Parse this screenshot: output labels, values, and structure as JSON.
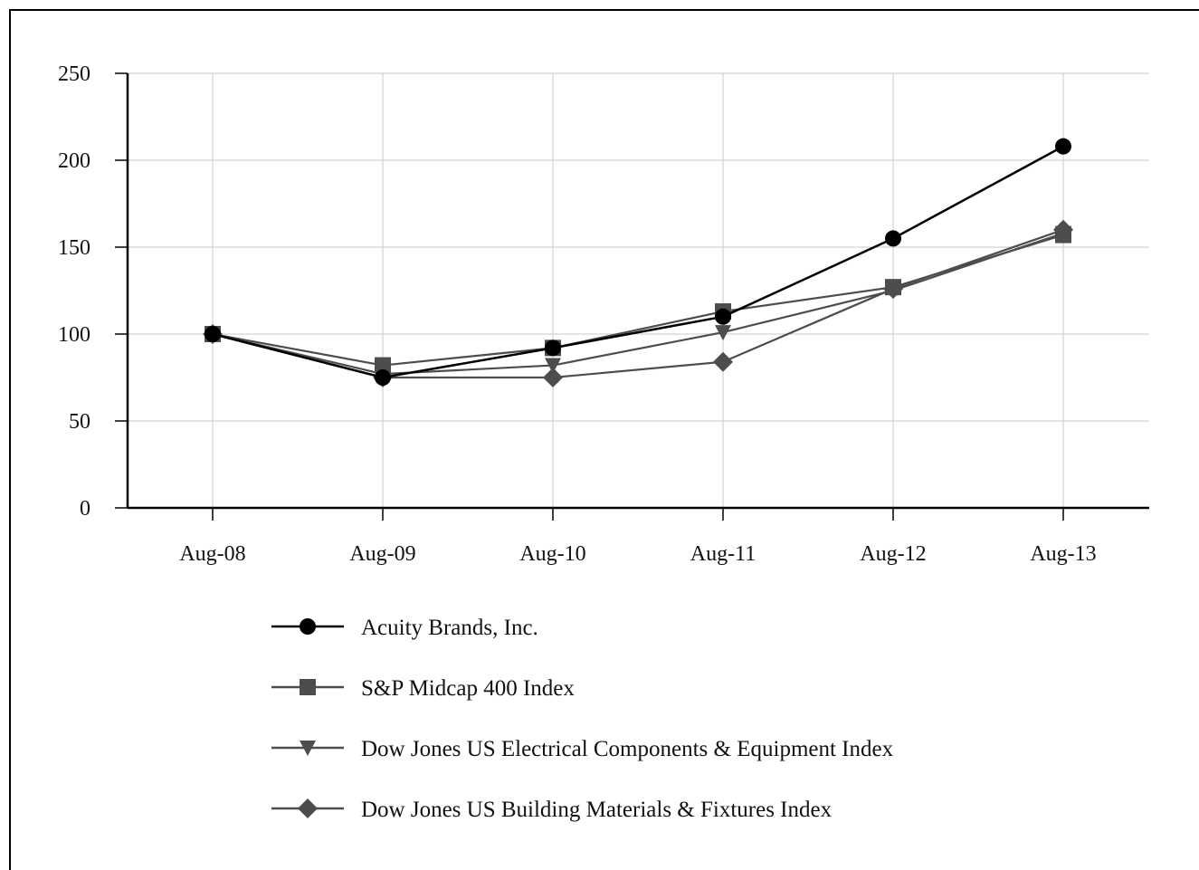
{
  "chart_data": {
    "type": "line",
    "title": "",
    "xlabel": "",
    "ylabel": "",
    "categories": [
      "Aug-08",
      "Aug-09",
      "Aug-10",
      "Aug-11",
      "Aug-12",
      "Aug-13"
    ],
    "ylim": [
      0,
      250
    ],
    "yticks": [
      0,
      50,
      100,
      150,
      200,
      250
    ],
    "grid": true,
    "legend_position": "bottom",
    "series": [
      {
        "name": "Acuity Brands, Inc.",
        "marker": "circle",
        "color": "#000000",
        "values": [
          100,
          75,
          92,
          110,
          155,
          208
        ]
      },
      {
        "name": "S&P Midcap 400 Index",
        "marker": "square",
        "color": "#4d4d4d",
        "values": [
          100,
          82,
          92,
          113,
          127,
          157
        ]
      },
      {
        "name": "Dow Jones US Electrical Components & Equipment Index",
        "marker": "triangle-down",
        "color": "#4d4d4d",
        "values": [
          100,
          77,
          82,
          101,
          125,
          158
        ]
      },
      {
        "name": "Dow Jones US Building Materials & Fixtures Index",
        "marker": "diamond",
        "color": "#4d4d4d",
        "values": [
          100,
          75,
          75,
          84,
          126,
          160
        ]
      }
    ]
  }
}
